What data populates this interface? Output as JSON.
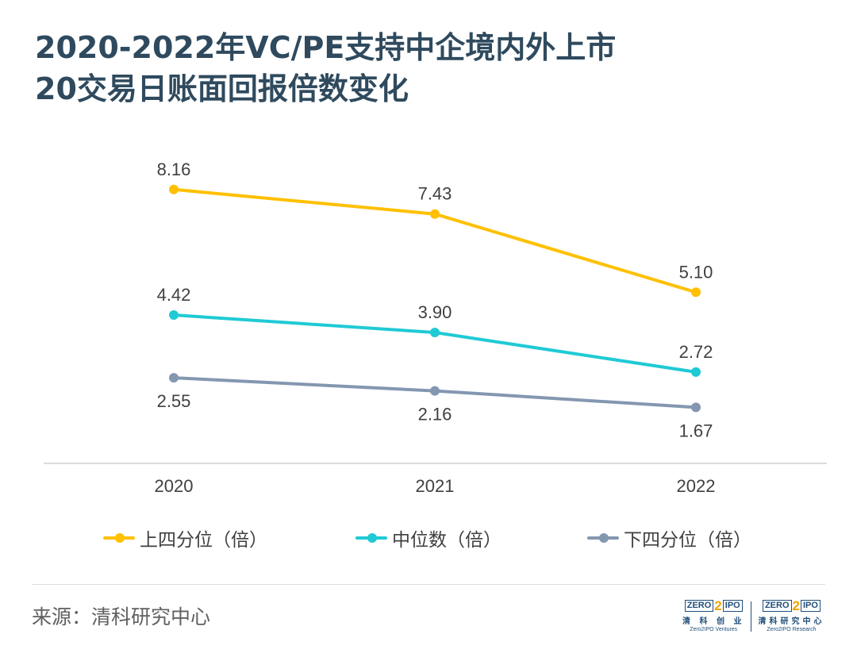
{
  "title_line1": "2020-2022年VC/PE支持中企境内外上市",
  "title_line2": "20交易日账面回报倍数变化",
  "source": "来源：清科研究中心",
  "logos": [
    {
      "mark_left": "ZERO",
      "mark_two": "2",
      "mark_right": "IPO",
      "cn": "清 科 创 业",
      "en": "Zero2IPO Ventures"
    },
    {
      "mark_left": "ZERO",
      "mark_two": "2",
      "mark_right": "IPO",
      "cn": "清科研究中心",
      "en": "Zero2IPO Research"
    }
  ],
  "chart_data": {
    "type": "line",
    "x": [
      "2020",
      "2021",
      "2022"
    ],
    "series": [
      {
        "name": "上四分位（倍）",
        "values": [
          8.16,
          7.43,
          5.1
        ],
        "labels": [
          "8.16",
          "7.43",
          "5.10"
        ],
        "color": "#ffc000",
        "label_position": "above"
      },
      {
        "name": "中位数（倍）",
        "values": [
          4.42,
          3.9,
          2.72
        ],
        "labels": [
          "4.42",
          "3.90",
          "2.72"
        ],
        "color": "#1fcad5",
        "label_position": "above"
      },
      {
        "name": "下四分位（倍）",
        "values": [
          2.55,
          2.16,
          1.67
        ],
        "labels": [
          "2.55",
          "2.16",
          "1.67"
        ],
        "color": "#8497b0",
        "label_position": "below"
      }
    ],
    "legend_position": "bottom",
    "grid": false,
    "axis_color": "#d0d0d0"
  }
}
